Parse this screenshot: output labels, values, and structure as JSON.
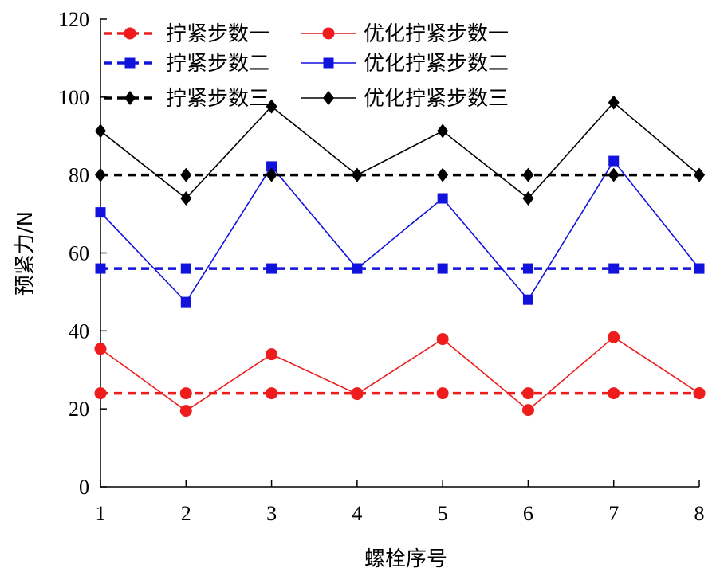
{
  "chart_data": {
    "type": "line",
    "title": "",
    "xlabel": "螺栓序号",
    "ylabel": "预紧力/N",
    "x": [
      1,
      2,
      3,
      4,
      5,
      6,
      7,
      8
    ],
    "xlim": [
      1,
      8
    ],
    "ylim": [
      0,
      120
    ],
    "yticks": [
      0,
      20,
      40,
      60,
      80,
      100,
      120
    ],
    "grid": false,
    "legend_position": "top-left",
    "series": [
      {
        "name": "拧紧步数一",
        "values": [
          24,
          24,
          24,
          24,
          24,
          24,
          24,
          24
        ],
        "color": "#ee1c1c",
        "style": "dashed",
        "marker": "circle"
      },
      {
        "name": "优化拧紧步数一",
        "values": [
          35.4,
          19.5,
          34,
          23.8,
          37.9,
          19.7,
          38.4,
          24
        ],
        "color": "#ee1c1c",
        "style": "solid",
        "marker": "circle"
      },
      {
        "name": "拧紧步数二",
        "values": [
          56,
          56,
          56,
          56,
          56,
          56,
          56,
          56
        ],
        "color": "#1212dd",
        "style": "dashed",
        "marker": "square"
      },
      {
        "name": "优化拧紧步数二",
        "values": [
          70.4,
          47.4,
          82.2,
          56,
          74,
          48,
          83.6,
          56
        ],
        "color": "#1212dd",
        "style": "solid",
        "marker": "square"
      },
      {
        "name": "拧紧步数三",
        "values": [
          80,
          80,
          80,
          80,
          80,
          80,
          80,
          80
        ],
        "color": "#000000",
        "style": "dashed",
        "marker": "diamond"
      },
      {
        "name": "优化拧紧步数三",
        "values": [
          91.3,
          74,
          97.6,
          80,
          91.3,
          74,
          98.6,
          80
        ],
        "color": "#000000",
        "style": "solid",
        "marker": "diamond"
      }
    ]
  }
}
